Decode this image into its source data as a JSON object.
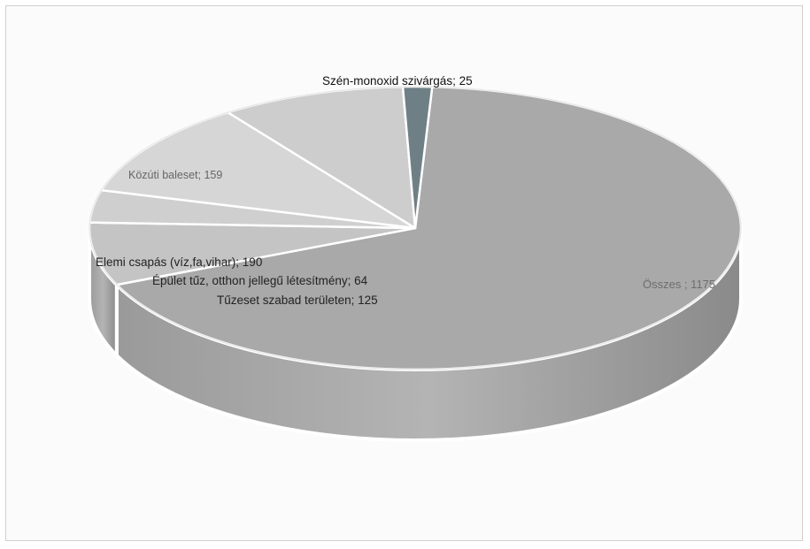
{
  "chart_data": {
    "type": "pie",
    "variant": "3d",
    "title": "",
    "slices": [
      {
        "label": "Összes",
        "value": 1175,
        "text": "Összes ; 1175",
        "color": "#a9a9a9",
        "label_color": "#6e6e6e"
      },
      {
        "label": "Tűzeset szabad területen",
        "value": 125,
        "text": "Tűzeset szabad területen; 125",
        "color": "#c4c4c4",
        "label_color": "#222222"
      },
      {
        "label": "Épület tűz, otthon jellegű létesítmény",
        "value": 64,
        "text": "Épület tűz, otthon jellegű létesítmény; 64",
        "color": "#cfcfcf",
        "label_color": "#222222"
      },
      {
        "label": "Elemi csapás (víz,fa,vihar)",
        "value": 190,
        "text": "Elemi csapás (víz,fa,vihar); 190",
        "color": "#d6d6d6",
        "label_color": "#222222"
      },
      {
        "label": "Közúti baleset",
        "value": 159,
        "text": "Közúti baleset; 159",
        "color": "#cdcdcd",
        "label_color": "#666666"
      },
      {
        "label": "Szén-monoxid szivárgás",
        "value": 25,
        "text": "Szén-monoxid szivárgás; 25",
        "color": "#6f7f86",
        "label_color": "#111111"
      }
    ]
  }
}
